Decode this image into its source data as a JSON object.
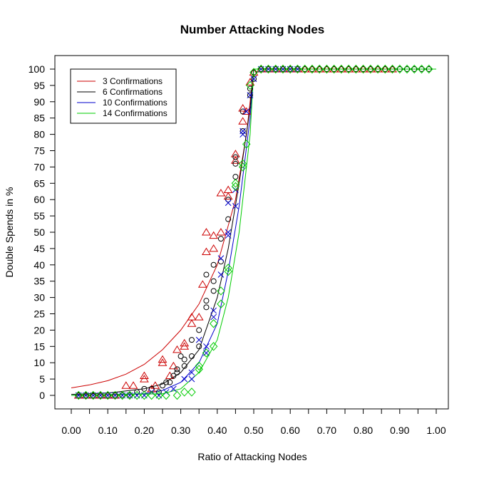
{
  "chart_data": {
    "type": "scatter",
    "title": "Number Attacking Nodes",
    "xlabel": "Ratio of Attacking Nodes",
    "ylabel": "Double Spends in %",
    "xlim": [
      0,
      1
    ],
    "ylim": [
      0,
      100
    ],
    "x_ticks": [
      "0.00",
      "0.10",
      "0.20",
      "0.30",
      "0.40",
      "0.50",
      "0.60",
      "0.70",
      "0.80",
      "0.90",
      "1.00"
    ],
    "y_ticks": [
      "0",
      "5",
      "10",
      "15",
      "20",
      "25",
      "30",
      "35",
      "40",
      "45",
      "50",
      "55",
      "60",
      "65",
      "70",
      "75",
      "80",
      "85",
      "90",
      "95",
      "100"
    ],
    "grid": false,
    "legend_position": "top-left",
    "series": [
      {
        "name": "3 Confirmations",
        "color": "#cc0000",
        "marker": "triangle",
        "curve": [
          [
            0,
            2.3
          ],
          [
            0.05,
            3.2
          ],
          [
            0.1,
            4.5
          ],
          [
            0.15,
            6.5
          ],
          [
            0.2,
            9.5
          ],
          [
            0.25,
            14
          ],
          [
            0.3,
            20
          ],
          [
            0.35,
            28
          ],
          [
            0.4,
            40
          ],
          [
            0.45,
            60
          ],
          [
            0.48,
            80
          ],
          [
            0.5,
            100
          ],
          [
            1.0,
            100
          ]
        ],
        "points": [
          [
            0.02,
            0
          ],
          [
            0.04,
            0
          ],
          [
            0.06,
            0
          ],
          [
            0.08,
            0
          ],
          [
            0.1,
            0
          ],
          [
            0.12,
            0
          ],
          [
            0.15,
            3
          ],
          [
            0.17,
            3
          ],
          [
            0.2,
            5
          ],
          [
            0.2,
            6
          ],
          [
            0.22,
            2
          ],
          [
            0.23,
            3
          ],
          [
            0.25,
            11
          ],
          [
            0.25,
            10
          ],
          [
            0.27,
            6
          ],
          [
            0.28,
            9
          ],
          [
            0.29,
            14
          ],
          [
            0.31,
            15
          ],
          [
            0.31,
            16
          ],
          [
            0.33,
            24
          ],
          [
            0.33,
            22
          ],
          [
            0.35,
            24
          ],
          [
            0.36,
            34
          ],
          [
            0.37,
            44
          ],
          [
            0.37,
            50
          ],
          [
            0.39,
            49
          ],
          [
            0.39,
            45
          ],
          [
            0.41,
            50
          ],
          [
            0.41,
            62
          ],
          [
            0.43,
            61
          ],
          [
            0.43,
            63
          ],
          [
            0.45,
            74
          ],
          [
            0.45,
            72
          ],
          [
            0.47,
            84
          ],
          [
            0.47,
            88
          ],
          [
            0.48,
            87
          ],
          [
            0.49,
            96
          ],
          [
            0.5,
            99
          ],
          [
            0.52,
            100
          ],
          [
            0.54,
            100
          ],
          [
            0.56,
            100
          ],
          [
            0.58,
            100
          ],
          [
            0.6,
            100
          ],
          [
            0.62,
            100
          ],
          [
            0.64,
            100
          ],
          [
            0.66,
            100
          ],
          [
            0.68,
            100
          ],
          [
            0.7,
            100
          ],
          [
            0.72,
            100
          ],
          [
            0.74,
            100
          ],
          [
            0.76,
            100
          ],
          [
            0.78,
            100
          ],
          [
            0.8,
            100
          ],
          [
            0.82,
            100
          ],
          [
            0.84,
            100
          ],
          [
            0.86,
            100
          ],
          [
            0.88,
            100
          ]
        ]
      },
      {
        "name": "6 Confirmations",
        "color": "#000000",
        "marker": "circle",
        "curve": [
          [
            0,
            0.3
          ],
          [
            0.1,
            0.7
          ],
          [
            0.2,
            2
          ],
          [
            0.25,
            3.5
          ],
          [
            0.3,
            7
          ],
          [
            0.35,
            14
          ],
          [
            0.4,
            30
          ],
          [
            0.43,
            45
          ],
          [
            0.46,
            65
          ],
          [
            0.49,
            88
          ],
          [
            0.5,
            100
          ],
          [
            1.0,
            100
          ]
        ],
        "points": [
          [
            0.02,
            0
          ],
          [
            0.04,
            0
          ],
          [
            0.06,
            0
          ],
          [
            0.08,
            0
          ],
          [
            0.1,
            0
          ],
          [
            0.12,
            0
          ],
          [
            0.14,
            0
          ],
          [
            0.16,
            0
          ],
          [
            0.18,
            1
          ],
          [
            0.2,
            2
          ],
          [
            0.22,
            2
          ],
          [
            0.24,
            1
          ],
          [
            0.25,
            3
          ],
          [
            0.26,
            4
          ],
          [
            0.27,
            4
          ],
          [
            0.28,
            6
          ],
          [
            0.29,
            7
          ],
          [
            0.29,
            8
          ],
          [
            0.3,
            12
          ],
          [
            0.31,
            9
          ],
          [
            0.31,
            11
          ],
          [
            0.33,
            17
          ],
          [
            0.33,
            12
          ],
          [
            0.35,
            20
          ],
          [
            0.35,
            15
          ],
          [
            0.37,
            27
          ],
          [
            0.37,
            29
          ],
          [
            0.37,
            37
          ],
          [
            0.39,
            40
          ],
          [
            0.39,
            32
          ],
          [
            0.39,
            35
          ],
          [
            0.41,
            48
          ],
          [
            0.41,
            41
          ],
          [
            0.43,
            54
          ],
          [
            0.43,
            60
          ],
          [
            0.45,
            67
          ],
          [
            0.45,
            71
          ],
          [
            0.45,
            73
          ],
          [
            0.47,
            81
          ],
          [
            0.47,
            87
          ],
          [
            0.49,
            92
          ],
          [
            0.49,
            94
          ],
          [
            0.5,
            97
          ],
          [
            0.5,
            99
          ],
          [
            0.52,
            100
          ],
          [
            0.54,
            100
          ],
          [
            0.56,
            100
          ],
          [
            0.58,
            100
          ],
          [
            0.6,
            100
          ],
          [
            0.62,
            100
          ],
          [
            0.64,
            100
          ],
          [
            0.66,
            100
          ],
          [
            0.68,
            100
          ],
          [
            0.7,
            100
          ],
          [
            0.72,
            100
          ],
          [
            0.74,
            100
          ],
          [
            0.76,
            100
          ],
          [
            0.78,
            100
          ],
          [
            0.8,
            100
          ],
          [
            0.82,
            100
          ],
          [
            0.84,
            100
          ],
          [
            0.86,
            100
          ],
          [
            0.88,
            100
          ],
          [
            0.9,
            100
          ],
          [
            0.92,
            100
          ],
          [
            0.94,
            100
          ],
          [
            0.96,
            100
          ],
          [
            0.98,
            100
          ]
        ]
      },
      {
        "name": "10 Confirmations",
        "color": "#0000cc",
        "marker": "x",
        "curve": [
          [
            0,
            0
          ],
          [
            0.2,
            0.5
          ],
          [
            0.25,
            1.5
          ],
          [
            0.3,
            4
          ],
          [
            0.35,
            10
          ],
          [
            0.4,
            22
          ],
          [
            0.43,
            38
          ],
          [
            0.46,
            58
          ],
          [
            0.49,
            85
          ],
          [
            0.5,
            100
          ],
          [
            1.0,
            100
          ]
        ],
        "points": [
          [
            0.02,
            0
          ],
          [
            0.04,
            0
          ],
          [
            0.06,
            0
          ],
          [
            0.08,
            0
          ],
          [
            0.1,
            0
          ],
          [
            0.12,
            0
          ],
          [
            0.14,
            0
          ],
          [
            0.16,
            0
          ],
          [
            0.18,
            0
          ],
          [
            0.2,
            0
          ],
          [
            0.22,
            1
          ],
          [
            0.24,
            0
          ],
          [
            0.26,
            1
          ],
          [
            0.28,
            2
          ],
          [
            0.31,
            5
          ],
          [
            0.33,
            5
          ],
          [
            0.33,
            7
          ],
          [
            0.35,
            17
          ],
          [
            0.37,
            15
          ],
          [
            0.37,
            13
          ],
          [
            0.39,
            26
          ],
          [
            0.39,
            24
          ],
          [
            0.41,
            37
          ],
          [
            0.41,
            42
          ],
          [
            0.43,
            49
          ],
          [
            0.43,
            50
          ],
          [
            0.43,
            59
          ],
          [
            0.45,
            58
          ],
          [
            0.45,
            63
          ],
          [
            0.47,
            80
          ],
          [
            0.47,
            81
          ],
          [
            0.48,
            87
          ],
          [
            0.49,
            92
          ],
          [
            0.5,
            97
          ],
          [
            0.52,
            100
          ],
          [
            0.54,
            100
          ],
          [
            0.56,
            100
          ],
          [
            0.58,
            100
          ],
          [
            0.6,
            100
          ],
          [
            0.62,
            100
          ]
        ]
      },
      {
        "name": "14 Confirmations",
        "color": "#00cc00",
        "marker": "diamond",
        "curve": [
          [
            0,
            0
          ],
          [
            0.25,
            0.5
          ],
          [
            0.3,
            2
          ],
          [
            0.35,
            7
          ],
          [
            0.4,
            17
          ],
          [
            0.43,
            30
          ],
          [
            0.46,
            50
          ],
          [
            0.49,
            80
          ],
          [
            0.5,
            100
          ],
          [
            1.0,
            100
          ]
        ],
        "points": [
          [
            0.02,
            0
          ],
          [
            0.04,
            0
          ],
          [
            0.06,
            0
          ],
          [
            0.08,
            0
          ],
          [
            0.1,
            0
          ],
          [
            0.12,
            0
          ],
          [
            0.14,
            0
          ],
          [
            0.16,
            0
          ],
          [
            0.18,
            0
          ],
          [
            0.2,
            0
          ],
          [
            0.22,
            0
          ],
          [
            0.24,
            0
          ],
          [
            0.26,
            0
          ],
          [
            0.29,
            0
          ],
          [
            0.31,
            1
          ],
          [
            0.33,
            1
          ],
          [
            0.35,
            8
          ],
          [
            0.35,
            9
          ],
          [
            0.37,
            13
          ],
          [
            0.39,
            15
          ],
          [
            0.39,
            22
          ],
          [
            0.41,
            28
          ],
          [
            0.41,
            32
          ],
          [
            0.43,
            38
          ],
          [
            0.43,
            39
          ],
          [
            0.45,
            64
          ],
          [
            0.45,
            65
          ],
          [
            0.47,
            70
          ],
          [
            0.47,
            71
          ],
          [
            0.48,
            77
          ],
          [
            0.49,
            95
          ],
          [
            0.5,
            99
          ],
          [
            0.52,
            100
          ],
          [
            0.54,
            100
          ],
          [
            0.56,
            100
          ],
          [
            0.58,
            100
          ],
          [
            0.6,
            100
          ],
          [
            0.62,
            100
          ],
          [
            0.64,
            100
          ],
          [
            0.66,
            100
          ],
          [
            0.68,
            100
          ],
          [
            0.7,
            100
          ],
          [
            0.72,
            100
          ],
          [
            0.74,
            100
          ],
          [
            0.76,
            100
          ],
          [
            0.78,
            100
          ],
          [
            0.8,
            100
          ],
          [
            0.82,
            100
          ],
          [
            0.84,
            100
          ],
          [
            0.86,
            100
          ],
          [
            0.88,
            100
          ],
          [
            0.9,
            100
          ],
          [
            0.92,
            100
          ],
          [
            0.94,
            100
          ],
          [
            0.96,
            100
          ],
          [
            0.98,
            100
          ]
        ]
      }
    ]
  }
}
